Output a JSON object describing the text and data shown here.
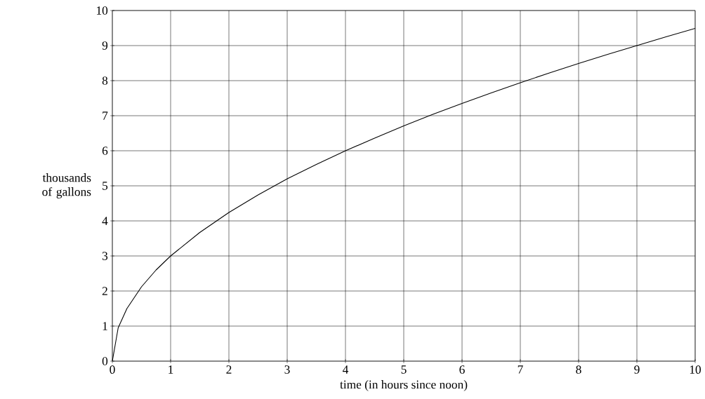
{
  "chart_data": {
    "type": "line",
    "xlabel": "time (in hours since noon)",
    "ylabel": "thousands of gallons",
    "x": [
      0,
      0.1,
      0.25,
      0.5,
      0.75,
      1,
      1.5,
      2,
      2.5,
      3,
      3.5,
      4,
      4.5,
      5,
      5.5,
      6,
      6.5,
      7,
      7.5,
      8,
      8.5,
      9,
      9.5,
      10
    ],
    "series": [
      {
        "color": "#000000",
        "values": [
          0,
          0.95,
          1.5,
          2.12,
          2.6,
          3,
          3.67,
          4.24,
          4.74,
          5.2,
          5.61,
          6,
          6.36,
          6.71,
          7.04,
          7.35,
          7.65,
          7.94,
          8.22,
          8.49,
          8.75,
          9,
          9.25,
          9.49
        ]
      }
    ],
    "xlim": [
      0,
      10
    ],
    "ylim": [
      0,
      10
    ],
    "xticks": [
      0,
      1,
      2,
      3,
      4,
      5,
      6,
      7,
      8,
      9,
      10
    ],
    "yticks": [
      0,
      1,
      2,
      3,
      4,
      5,
      6,
      7,
      8,
      9,
      10
    ],
    "grid": true,
    "marker": "none",
    "line_style": "solid"
  }
}
